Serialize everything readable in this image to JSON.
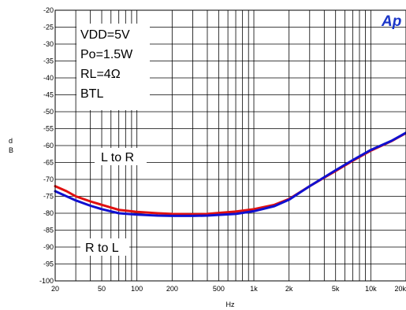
{
  "chart_data": {
    "type": "line",
    "title": "",
    "xlabel": "Hz",
    "ylabel": "d\nB",
    "xscale": "log",
    "xlim": [
      20,
      20000
    ],
    "ylim": [
      -100,
      -20
    ],
    "grid": true,
    "x_tick_labels": [
      {
        "value": 20,
        "label": "20"
      },
      {
        "value": 50,
        "label": "50"
      },
      {
        "value": 100,
        "label": "100"
      },
      {
        "value": 200,
        "label": "200"
      },
      {
        "value": 500,
        "label": "500"
      },
      {
        "value": 1000,
        "label": "1k"
      },
      {
        "value": 2000,
        "label": "2k"
      },
      {
        "value": 5000,
        "label": "5k"
      },
      {
        "value": 10000,
        "label": "10k"
      },
      {
        "value": 20000,
        "label": "20k"
      }
    ],
    "y_ticks": [
      -20,
      -25,
      -30,
      -35,
      -40,
      -45,
      -50,
      -55,
      -60,
      -65,
      -70,
      -75,
      -80,
      -85,
      -90,
      -95,
      -100
    ],
    "annotations": {
      "conditions": [
        "VDD=5V",
        "Po=1.5W",
        "RL=4Ω",
        "BTL"
      ],
      "series_label_1": "L to R",
      "series_label_2": "R to L"
    },
    "logo": "Ap",
    "series": [
      {
        "color": "#e01010",
        "x": [
          20,
          25,
          30,
          40,
          50,
          70,
          100,
          150,
          200,
          300,
          400,
          500,
          700,
          1000,
          1500,
          2000,
          3000,
          5000,
          7000,
          10000,
          15000,
          20000
        ],
        "values": [
          -72,
          -73.5,
          -75,
          -76.5,
          -77.5,
          -79,
          -79.6,
          -80,
          -80.2,
          -80.3,
          -80.2,
          -79.9,
          -79.5,
          -78.8,
          -77.5,
          -75.8,
          -72,
          -67.5,
          -64.5,
          -61.5,
          -58.7,
          -56.3
        ]
      },
      {
        "color": "#1010d0",
        "x": [
          20,
          25,
          30,
          40,
          50,
          70,
          100,
          150,
          200,
          300,
          400,
          500,
          700,
          1000,
          1500,
          2000,
          3000,
          5000,
          7000,
          10000,
          15000,
          20000
        ],
        "values": [
          -73.5,
          -75,
          -76.2,
          -77.8,
          -78.8,
          -80,
          -80.4,
          -80.7,
          -80.8,
          -80.8,
          -80.7,
          -80.5,
          -80.2,
          -79.4,
          -77.9,
          -76,
          -72,
          -67.3,
          -64.3,
          -61.3,
          -58.6,
          -56.2
        ]
      }
    ]
  }
}
